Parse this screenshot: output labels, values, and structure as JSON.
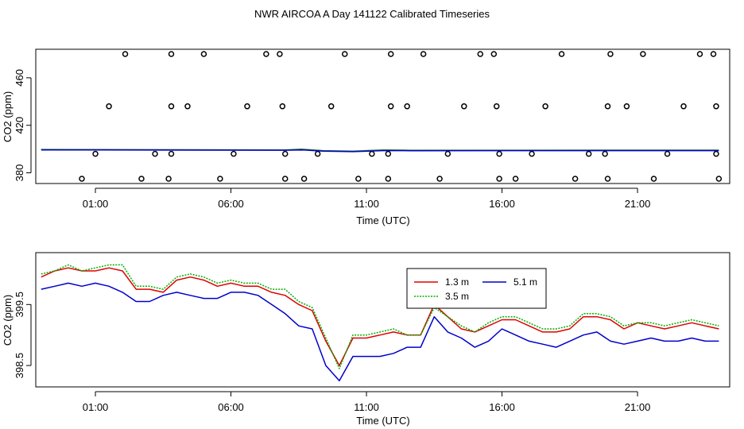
{
  "figure": {
    "title": "NWR AIRCOA A  Day 141122  Calibrated Timeseries"
  },
  "chart_data": [
    {
      "type": "scatter",
      "xlabel": "Time (UTC)",
      "ylabel": "CO2 (ppm)",
      "xlim": [
        -1.2,
        24.4
      ],
      "ylim": [
        371,
        484
      ],
      "x_ticks": [
        1,
        6,
        11,
        16,
        21
      ],
      "x_tick_labels": [
        "01:00",
        "06:00",
        "11:00",
        "16:00",
        "21:00"
      ],
      "y_ticks": [
        380,
        420,
        460
      ],
      "y_tick_labels": [
        "380",
        "420",
        "460"
      ],
      "grid": false,
      "series": [
        {
          "kind": "points",
          "x": [
            2.1,
            3.8,
            5.0,
            7.3,
            7.8,
            10.2,
            11.9,
            13.1,
            15.2,
            15.7,
            18.2,
            20.0,
            21.2,
            23.3,
            23.8
          ],
          "y": [
            480,
            480,
            480,
            480,
            480,
            480,
            480,
            480,
            480,
            480,
            480,
            480,
            480,
            480,
            480
          ]
        },
        {
          "kind": "points",
          "x": [
            1.5,
            3.8,
            4.4,
            6.6,
            7.9,
            9.7,
            11.9,
            12.5,
            14.6,
            15.8,
            17.6,
            19.9,
            20.6,
            22.7,
            23.9
          ],
          "y": [
            436,
            436,
            436,
            436,
            436,
            436,
            436,
            436,
            436,
            436,
            436,
            436,
            436,
            436,
            436
          ]
        },
        {
          "kind": "points",
          "x": [
            1.0,
            3.2,
            3.8,
            6.1,
            8.0,
            9.2,
            11.2,
            11.8,
            14.0,
            15.9,
            17.1,
            19.2,
            19.8,
            22.1,
            23.9
          ],
          "y": [
            396,
            396,
            396,
            396,
            396,
            396,
            396,
            396,
            396,
            396,
            396,
            396,
            396,
            396,
            396
          ]
        },
        {
          "kind": "points",
          "x": [
            0.5,
            2.7,
            3.7,
            5.6,
            8.0,
            8.7,
            10.7,
            11.8,
            13.7,
            15.9,
            16.5,
            18.7,
            19.9,
            21.6,
            24.0
          ],
          "y": [
            375,
            375,
            375,
            375,
            375,
            375,
            375,
            375,
            375,
            375,
            375,
            375,
            375,
            375,
            375
          ]
        },
        {
          "kind": "line",
          "color": "#2e7d1e",
          "x": [
            -1.0,
            8.0,
            8.6,
            9.4,
            10.5,
            11.6,
            12.6,
            24.0
          ],
          "y": [
            399.7,
            399.3,
            399.9,
            398.7,
            398.2,
            399.3,
            399.0,
            399.1
          ]
        },
        {
          "kind": "line",
          "color": "#0000cc",
          "x": [
            -1.0,
            8.0,
            8.6,
            9.4,
            10.5,
            11.6,
            12.6,
            24.0
          ],
          "y": [
            399.3,
            399.0,
            399.3,
            398.3,
            397.8,
            398.7,
            398.6,
            398.7
          ]
        }
      ]
    },
    {
      "type": "line",
      "xlabel": "Time (UTC)",
      "ylabel": "CO2 (ppm)",
      "xlim": [
        -1.2,
        24.4
      ],
      "ylim": [
        398.15,
        400.35
      ],
      "x_ticks": [
        1,
        6,
        11,
        16,
        21
      ],
      "x_tick_labels": [
        "01:00",
        "06:00",
        "11:00",
        "16:00",
        "21:00"
      ],
      "y_ticks": [
        398.5,
        399.5
      ],
      "y_tick_labels": [
        "398.5",
        "399.5"
      ],
      "grid": false,
      "legend": {
        "position": "top-center"
      },
      "series": [
        {
          "name": "1.3 m",
          "color": "#e00000",
          "x": [
            -1.0,
            -0.5,
            0.0,
            0.5,
            1.0,
            1.5,
            2.0,
            2.5,
            3.0,
            3.5,
            4.0,
            4.5,
            5.0,
            5.5,
            6.0,
            6.5,
            7.0,
            7.5,
            8.0,
            8.5,
            9.0,
            9.5,
            10.0,
            10.5,
            11.0,
            11.5,
            12.0,
            12.5,
            13.0,
            13.5,
            14.0,
            14.5,
            15.0,
            15.5,
            16.0,
            16.5,
            17.0,
            17.5,
            18.0,
            18.5,
            19.0,
            19.5,
            20.0,
            20.5,
            21.0,
            21.5,
            22.0,
            22.5,
            23.0,
            23.5,
            24.0
          ],
          "y": [
            399.95,
            400.05,
            400.1,
            400.05,
            400.05,
            400.1,
            400.05,
            399.75,
            399.75,
            399.7,
            399.9,
            399.95,
            399.9,
            399.8,
            399.85,
            399.8,
            399.8,
            399.7,
            399.65,
            399.5,
            399.4,
            398.9,
            398.5,
            398.95,
            398.95,
            399.0,
            399.05,
            399.0,
            399.0,
            399.5,
            399.3,
            399.1,
            399.05,
            399.15,
            399.25,
            399.25,
            399.15,
            399.05,
            399.05,
            399.1,
            399.3,
            399.3,
            399.25,
            399.1,
            399.2,
            399.15,
            399.1,
            399.15,
            399.2,
            399.15,
            399.1
          ]
        },
        {
          "name": "5.1 m",
          "color": "#0000cc",
          "x": [
            -1.0,
            -0.5,
            0.0,
            0.5,
            1.0,
            1.5,
            2.0,
            2.5,
            3.0,
            3.5,
            4.0,
            4.5,
            5.0,
            5.5,
            6.0,
            6.5,
            7.0,
            7.5,
            8.0,
            8.5,
            9.0,
            9.5,
            10.0,
            10.5,
            11.0,
            11.5,
            12.0,
            12.5,
            13.0,
            13.5,
            14.0,
            14.5,
            15.0,
            15.5,
            16.0,
            16.5,
            17.0,
            17.5,
            18.0,
            18.5,
            19.0,
            19.5,
            20.0,
            20.5,
            21.0,
            21.5,
            22.0,
            22.5,
            23.0,
            23.5,
            24.0
          ],
          "y": [
            399.75,
            399.8,
            399.85,
            399.8,
            399.85,
            399.8,
            399.7,
            399.55,
            399.55,
            399.65,
            399.7,
            399.65,
            399.6,
            399.6,
            399.7,
            399.7,
            399.65,
            399.5,
            399.35,
            399.15,
            399.1,
            398.5,
            398.25,
            398.65,
            398.65,
            398.65,
            398.7,
            398.8,
            398.8,
            399.3,
            399.05,
            398.95,
            398.8,
            398.9,
            399.1,
            399.0,
            398.9,
            398.85,
            398.8,
            398.9,
            399.0,
            399.05,
            398.9,
            398.85,
            398.9,
            398.95,
            398.9,
            398.9,
            398.95,
            398.9,
            398.9
          ]
        },
        {
          "name": "3.5 m",
          "color": "#00b000",
          "x": [
            -1.0,
            -0.5,
            0.0,
            0.5,
            1.0,
            1.5,
            2.0,
            2.5,
            3.0,
            3.5,
            4.0,
            4.5,
            5.0,
            5.5,
            6.0,
            6.5,
            7.0,
            7.5,
            8.0,
            8.5,
            9.0,
            9.5,
            10.0,
            10.5,
            11.0,
            11.5,
            12.0,
            12.5,
            13.0,
            13.5,
            14.0,
            14.5,
            15.0,
            15.5,
            16.0,
            16.5,
            17.0,
            17.5,
            18.0,
            18.5,
            19.0,
            19.5,
            20.0,
            20.5,
            21.0,
            21.5,
            22.0,
            22.5,
            23.0,
            23.5,
            24.0
          ],
          "y": [
            400.0,
            400.05,
            400.15,
            400.05,
            400.1,
            400.15,
            400.15,
            399.8,
            399.8,
            399.75,
            399.95,
            400.0,
            399.95,
            399.85,
            399.9,
            399.85,
            399.85,
            399.75,
            399.75,
            399.55,
            399.45,
            398.95,
            398.45,
            399.0,
            399.0,
            399.05,
            399.1,
            399.0,
            399.0,
            399.45,
            399.3,
            399.15,
            399.05,
            399.2,
            399.3,
            399.3,
            399.2,
            399.1,
            399.1,
            399.15,
            399.35,
            399.35,
            399.3,
            399.15,
            399.2,
            399.2,
            399.15,
            399.2,
            399.25,
            399.2,
            399.15
          ]
        }
      ]
    }
  ]
}
